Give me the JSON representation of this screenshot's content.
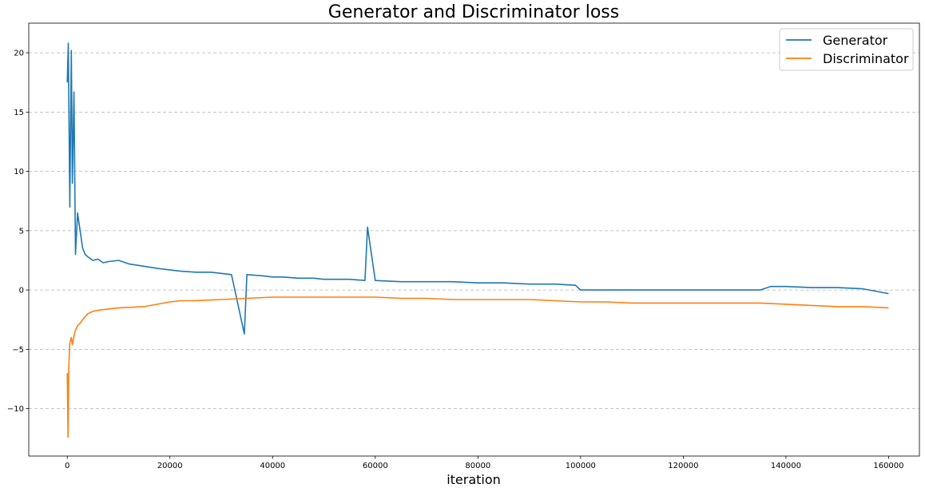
{
  "chart_data": {
    "type": "line",
    "title": "Generator and Discriminator loss",
    "xlabel": "iteration",
    "ylabel": "",
    "xlim": [
      -7500,
      166000
    ],
    "ylim": [
      -14,
      22.5
    ],
    "x_ticks": [
      0,
      20000,
      40000,
      60000,
      80000,
      100000,
      120000,
      140000,
      160000
    ],
    "y_ticks": [
      -10,
      -5,
      0,
      5,
      10,
      15,
      20
    ],
    "grid": "horizontal-dashed",
    "legend_position": "top-right",
    "colors": {
      "Generator": "#1f77b4",
      "Discriminator": "#ff7f0e"
    },
    "series": [
      {
        "name": "Generator",
        "x": [
          0,
          200,
          500,
          800,
          1000,
          1300,
          1600,
          2000,
          2500,
          3000,
          3500,
          4000,
          5000,
          6000,
          7000,
          8000,
          10000,
          12000,
          15000,
          18000,
          20000,
          22000,
          25000,
          28000,
          30000,
          32000,
          34500,
          35000,
          38000,
          40000,
          42000,
          45000,
          48000,
          50000,
          52000,
          55000,
          58000,
          58500,
          60000,
          65000,
          70000,
          75000,
          80000,
          85000,
          90000,
          95000,
          99000,
          100000,
          105000,
          110000,
          115000,
          120000,
          125000,
          130000,
          135000,
          137000,
          140000,
          145000,
          150000,
          155000,
          160000
        ],
        "y": [
          17.5,
          20.8,
          7.0,
          20.2,
          9.0,
          16.7,
          3.0,
          6.5,
          5.0,
          3.5,
          3.0,
          2.8,
          2.5,
          2.6,
          2.3,
          2.4,
          2.5,
          2.2,
          2.0,
          1.8,
          1.7,
          1.6,
          1.5,
          1.5,
          1.4,
          1.3,
          -3.7,
          1.3,
          1.2,
          1.1,
          1.1,
          1.0,
          1.0,
          0.9,
          0.9,
          0.9,
          0.8,
          5.3,
          0.8,
          0.7,
          0.7,
          0.7,
          0.6,
          0.6,
          0.5,
          0.5,
          0.4,
          0.0,
          0.0,
          0.0,
          0.0,
          0.0,
          0.0,
          0.0,
          0.0,
          0.3,
          0.3,
          0.2,
          0.2,
          0.1,
          -0.3
        ]
      },
      {
        "name": "Discriminator",
        "x": [
          0,
          150,
          300,
          500,
          800,
          1000,
          1500,
          2000,
          2500,
          3000,
          4000,
          5000,
          6000,
          8000,
          10000,
          15000,
          20000,
          22000,
          25000,
          30000,
          35000,
          40000,
          45000,
          50000,
          55000,
          60000,
          65000,
          70000,
          75000,
          80000,
          85000,
          90000,
          95000,
          100000,
          105000,
          110000,
          115000,
          120000,
          125000,
          130000,
          135000,
          140000,
          145000,
          150000,
          155000,
          160000
        ],
        "y": [
          -7.0,
          -12.4,
          -6.5,
          -4.5,
          -4.0,
          -4.6,
          -3.5,
          -3.0,
          -2.8,
          -2.5,
          -2.0,
          -1.8,
          -1.7,
          -1.6,
          -1.5,
          -1.4,
          -1.0,
          -0.9,
          -0.9,
          -0.8,
          -0.7,
          -0.6,
          -0.6,
          -0.6,
          -0.6,
          -0.6,
          -0.7,
          -0.7,
          -0.8,
          -0.8,
          -0.8,
          -0.8,
          -0.9,
          -1.0,
          -1.0,
          -1.1,
          -1.1,
          -1.1,
          -1.1,
          -1.1,
          -1.1,
          -1.2,
          -1.3,
          -1.4,
          -1.4,
          -1.5
        ]
      }
    ]
  }
}
